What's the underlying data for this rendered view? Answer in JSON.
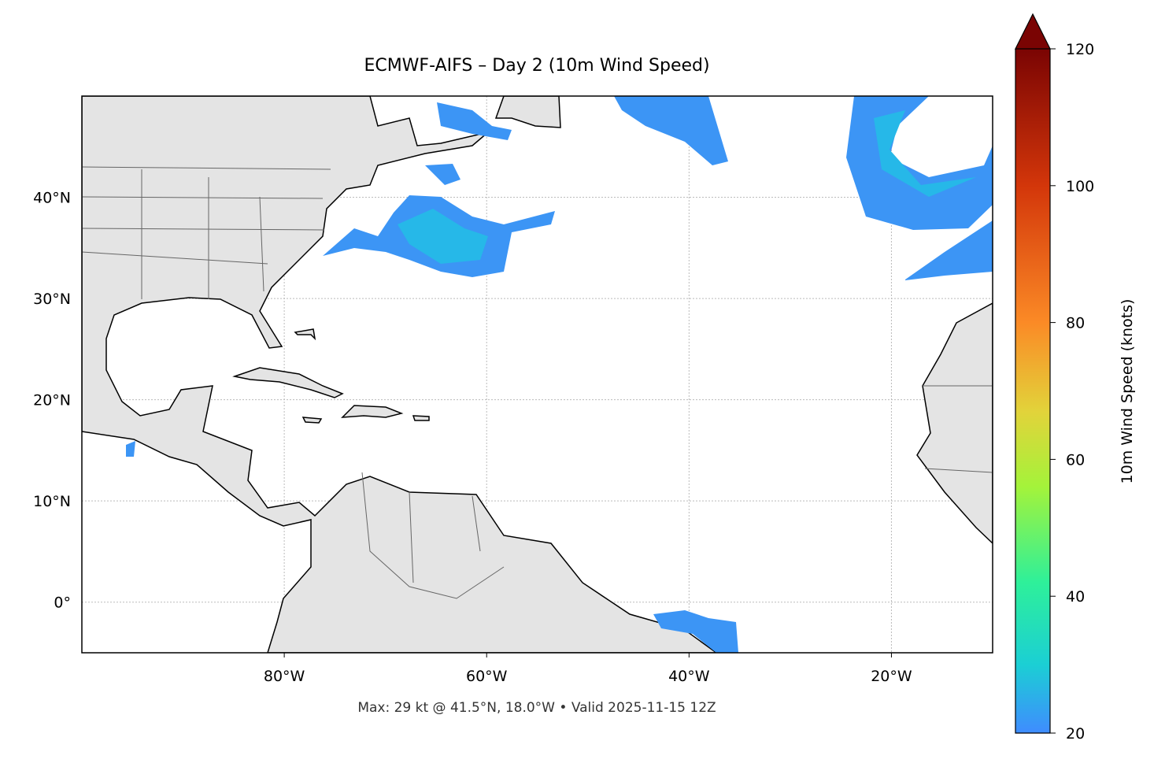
{
  "chart_data": {
    "type": "map",
    "title": "ECMWF-AIFS – Day 2 (10m Wind Speed)",
    "footer": "Max: 29 kt @ 41.5°N, 18.0°W • Valid 2025-11-15 12Z",
    "xlim": [
      -100,
      -10
    ],
    "ylim": [
      -5,
      50
    ],
    "xticks": [
      {
        "value": -80,
        "label": "80°W"
      },
      {
        "value": -60,
        "label": "60°W"
      },
      {
        "value": -40,
        "label": "40°W"
      },
      {
        "value": -20,
        "label": "20°W"
      }
    ],
    "yticks": [
      {
        "value": 0,
        "label": "0°"
      },
      {
        "value": 10,
        "label": "10°N"
      },
      {
        "value": 20,
        "label": "20°N"
      },
      {
        "value": 30,
        "label": "30°N"
      },
      {
        "value": 40,
        "label": "40°N"
      }
    ],
    "grid": true,
    "colorbar": {
      "label": "10m Wind Speed (knots)",
      "lim": [
        20,
        120
      ],
      "ticks": [
        20,
        40,
        60,
        80,
        100,
        120
      ],
      "extend": "max"
    }
  }
}
